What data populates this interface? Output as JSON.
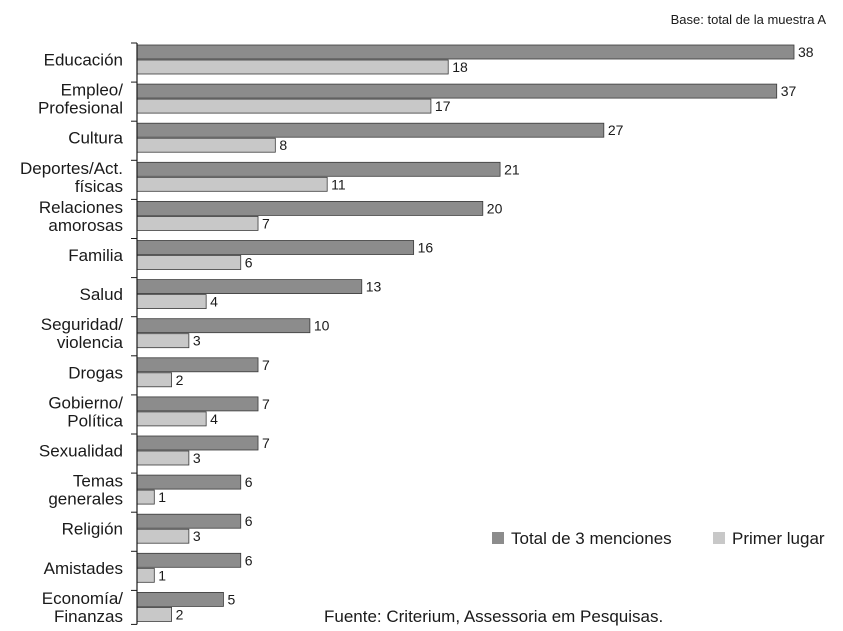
{
  "base_note": "Base: total de la muestra A",
  "source_note": "Fuente: Criterium, Assessoria em Pesquisas.",
  "colors": {
    "total": "#8c8c8c",
    "primer": "#c8c8c8",
    "stroke": "#3a3a3a",
    "axis": "#1a1a1a"
  },
  "chart_data": {
    "type": "bar",
    "orientation": "horizontal",
    "title": "",
    "categories": [
      [
        "Educación"
      ],
      [
        "Empleo/",
        "Profesional"
      ],
      [
        "Cultura"
      ],
      [
        "Deportes/Act.",
        "físicas"
      ],
      [
        "Relaciones",
        "amorosas"
      ],
      [
        "Familia"
      ],
      [
        "Salud"
      ],
      [
        "Seguridad/",
        "violencia"
      ],
      [
        "Drogas"
      ],
      [
        "Gobierno/",
        "Política"
      ],
      [
        "Sexualidad"
      ],
      [
        "Temas",
        "generales"
      ],
      [
        "Religión"
      ],
      [
        "Amistades"
      ],
      [
        "Economía/",
        "Finanzas"
      ]
    ],
    "series": [
      {
        "name": "Total de 3 menciones",
        "values": [
          38,
          37,
          27,
          21,
          20,
          16,
          13,
          10,
          7,
          7,
          7,
          6,
          6,
          6,
          5
        ]
      },
      {
        "name": "Primer lugar",
        "values": [
          18,
          17,
          8,
          11,
          7,
          6,
          4,
          3,
          2,
          4,
          3,
          1,
          3,
          1,
          2
        ]
      }
    ],
    "xlim": [
      0,
      38
    ],
    "grid": false,
    "legend_position": "bottom-right",
    "data_labels": true
  }
}
